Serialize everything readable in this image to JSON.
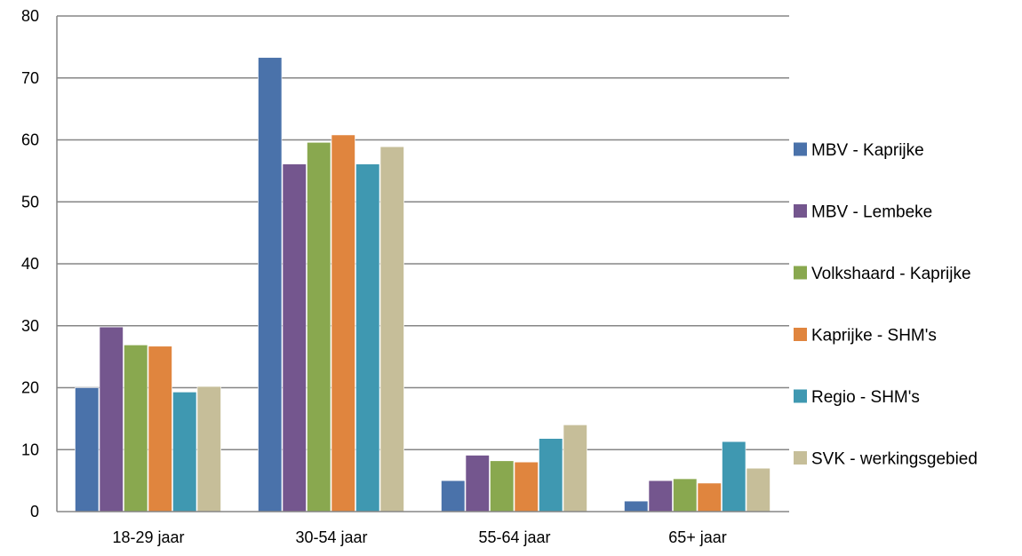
{
  "chart_data": {
    "type": "bar",
    "title": "",
    "xlabel": "",
    "ylabel": "",
    "ylim": [
      0,
      80
    ],
    "yticks": [
      0,
      10,
      20,
      30,
      40,
      50,
      60,
      70,
      80
    ],
    "grid": true,
    "legend_position": "right",
    "categories": [
      "18-29 jaar",
      "30-54 jaar",
      "55-64 jaar",
      "65+ jaar"
    ],
    "series": [
      {
        "name": "MBV - Kaprijke",
        "color": "#4A72AA",
        "values": [
          20.0,
          73.3,
          5.0,
          1.7
        ]
      },
      {
        "name": "MBV - Lembeke",
        "color": "#74568E",
        "values": [
          29.8,
          56.1,
          9.1,
          5.0
        ]
      },
      {
        "name": "Volkshaard - Kaprijke",
        "color": "#89A84F",
        "values": [
          26.9,
          59.6,
          8.2,
          5.3
        ]
      },
      {
        "name": "Kaprijke - SHM's",
        "color": "#E0853E",
        "values": [
          26.7,
          60.8,
          8.0,
          4.6
        ]
      },
      {
        "name": "Regio - SHM's",
        "color": "#3F98B1",
        "values": [
          19.3,
          56.1,
          11.8,
          11.3
        ]
      },
      {
        "name": "SVK - werkingsgebied",
        "color": "#C6BE99",
        "values": [
          20.2,
          58.9,
          14.0,
          7.0
        ]
      }
    ]
  }
}
